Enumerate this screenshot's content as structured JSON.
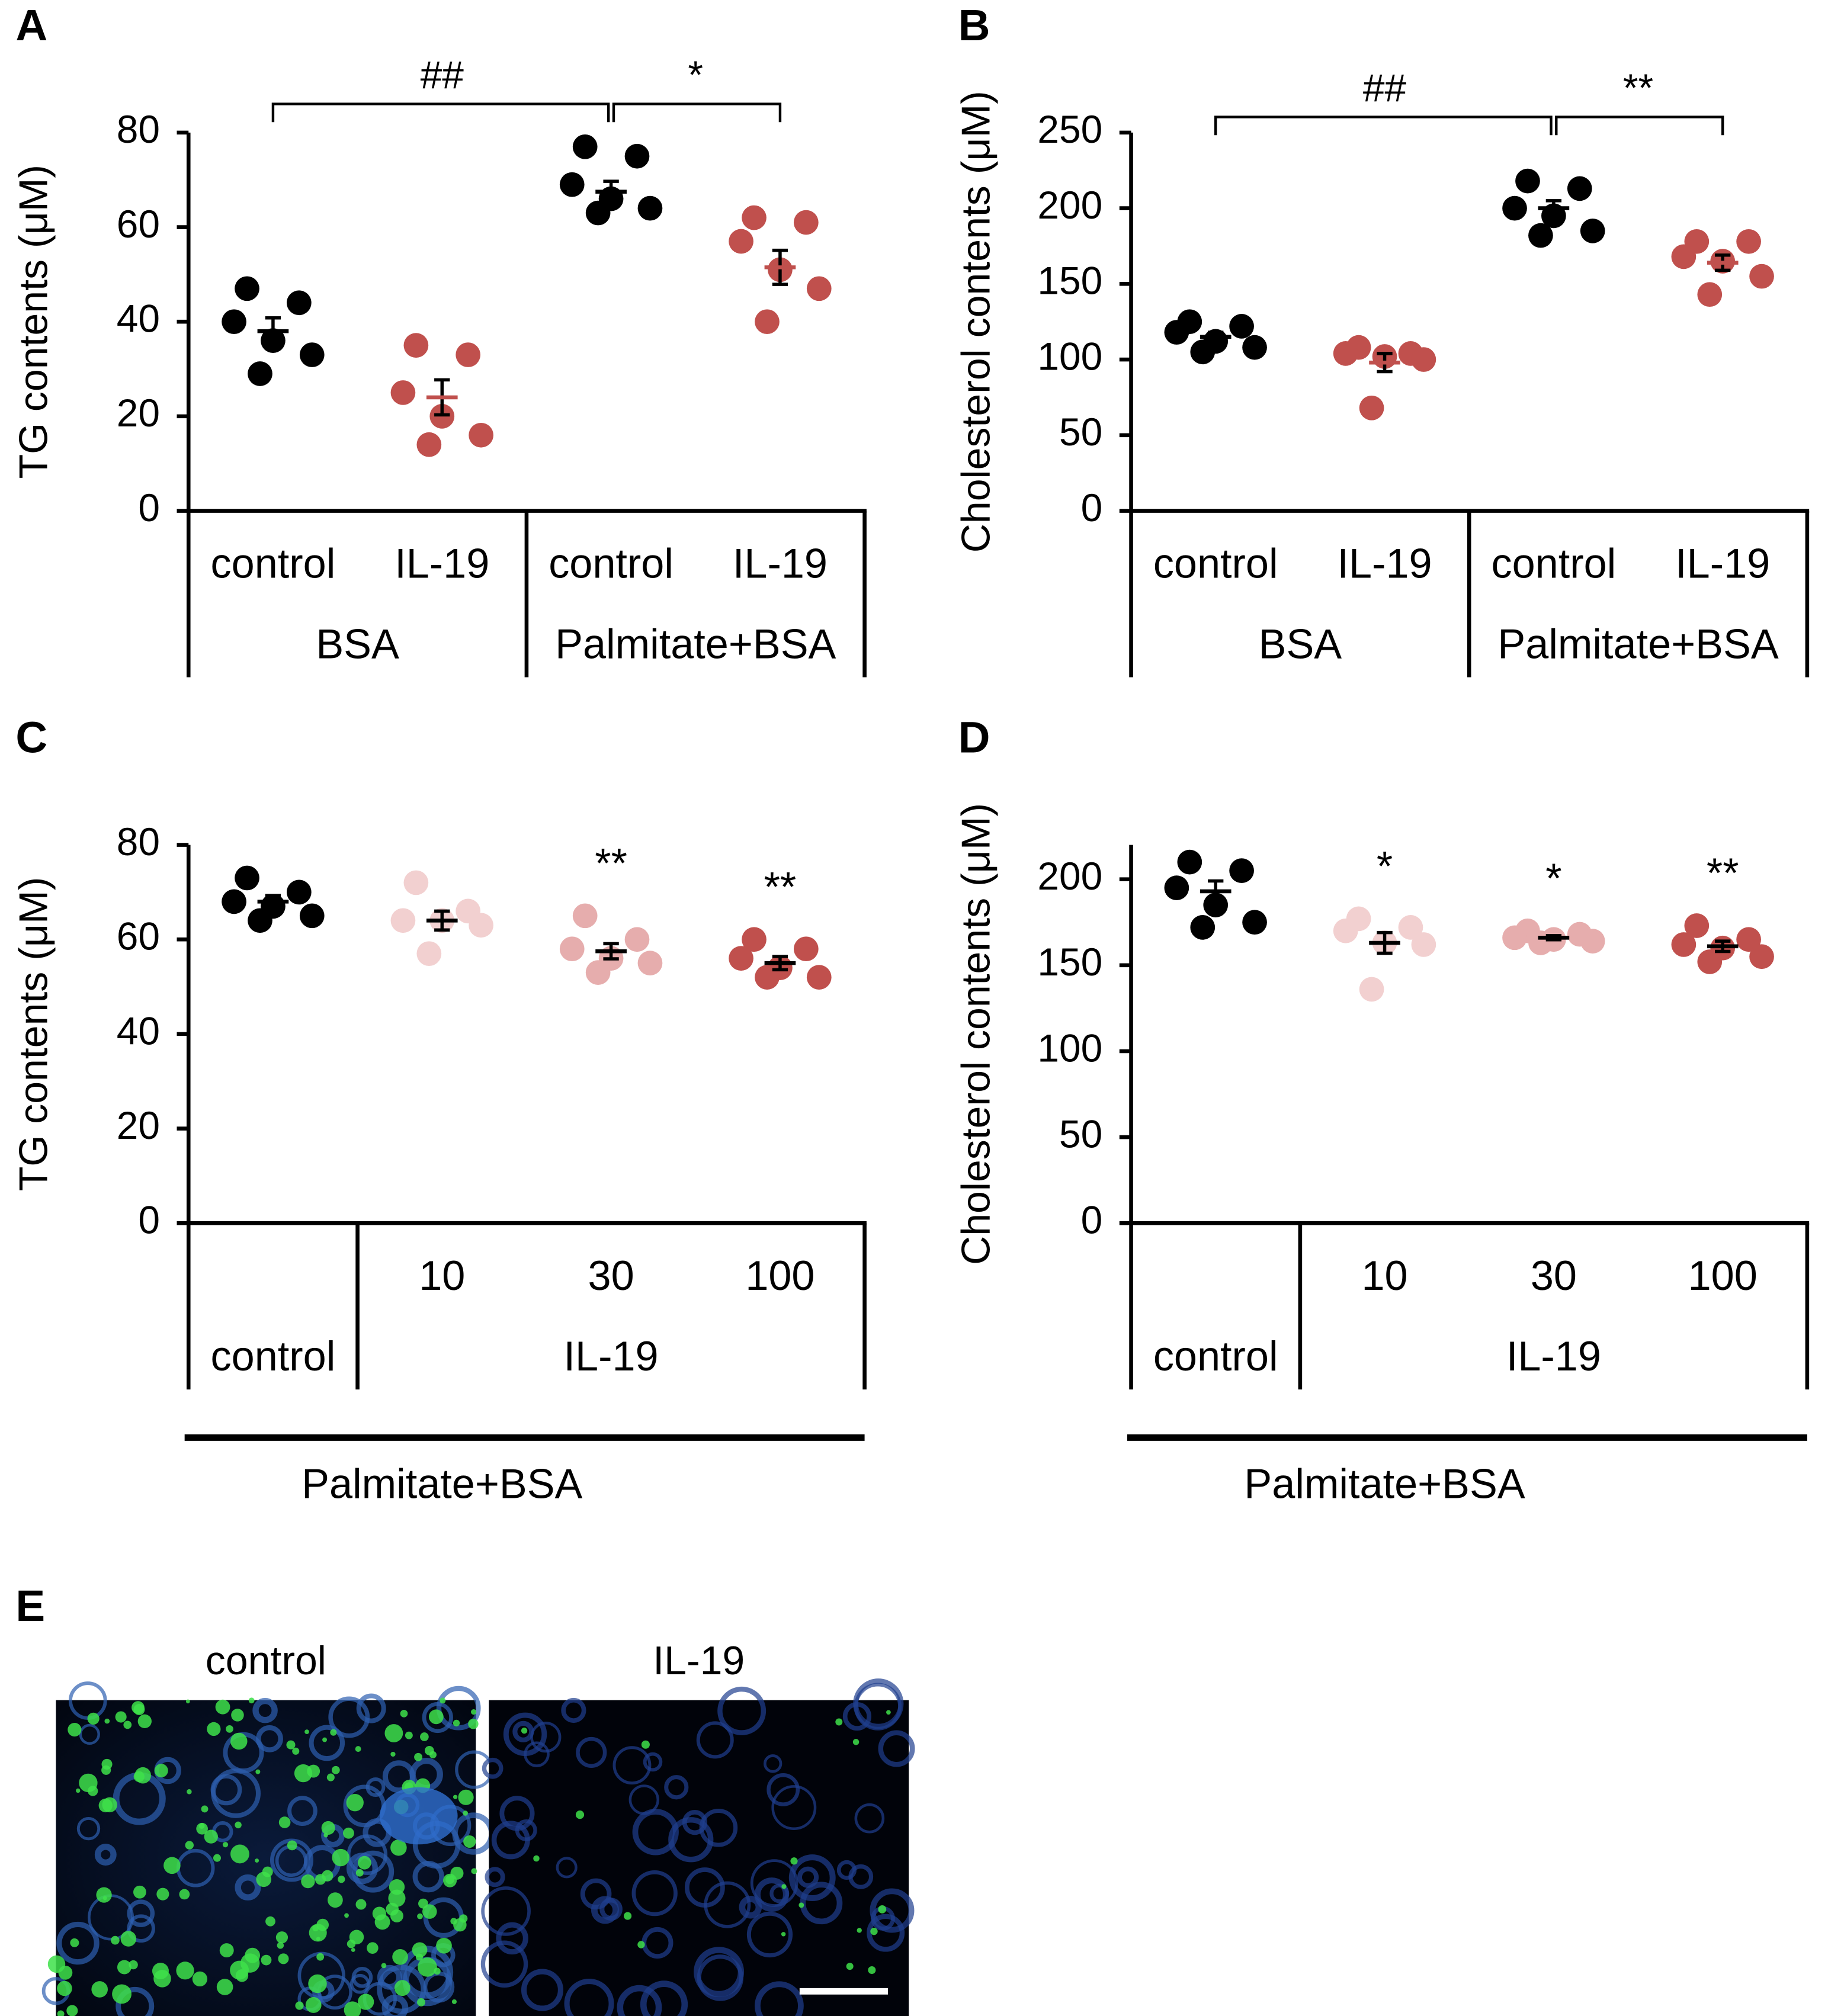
{
  "chart_data": [
    {
      "type": "dot",
      "panel": "A",
      "ylabel": "TG contents (μM)",
      "ylim": [
        0,
        80
      ],
      "yticks": [
        0,
        20,
        40,
        60,
        80
      ],
      "groups": [
        {
          "label": "BSA",
          "categories": [
            "control",
            "IL-19"
          ]
        },
        {
          "label": "Palmitate+BSA",
          "categories": [
            "control",
            "IL-19"
          ]
        }
      ],
      "data": [
        {
          "values": [
            47,
            44,
            40,
            36,
            33,
            29
          ],
          "mean": 38,
          "sem": 2.8,
          "color": "#000000",
          "mean_color": "#000000"
        },
        {
          "values": [
            35,
            33,
            25,
            20,
            16,
            14
          ],
          "mean": 24,
          "sem": 3.7,
          "color": "#c0504d",
          "mean_color": "#c0504d"
        },
        {
          "values": [
            77,
            75,
            69,
            66,
            64,
            63
          ],
          "mean": 67.5,
          "sem": 2.2,
          "color": "#000000",
          "mean_color": "#000000"
        },
        {
          "values": [
            62,
            61,
            57,
            51,
            47,
            40
          ],
          "mean": 51.5,
          "sem": 3.6,
          "color": "#c0504d",
          "mean_color": "#c0504d"
        }
      ],
      "brackets": [
        {
          "label": "##",
          "between": [
            0,
            2
          ]
        },
        {
          "label": "*",
          "between": [
            2,
            3
          ]
        }
      ]
    },
    {
      "type": "dot",
      "panel": "B",
      "ylabel": "Cholesterol contents (μM)",
      "ylim": [
        0,
        250
      ],
      "yticks": [
        0,
        50,
        100,
        150,
        200,
        250
      ],
      "groups": [
        {
          "label": "BSA",
          "categories": [
            "control",
            "IL-19"
          ]
        },
        {
          "label": "Palmitate+BSA",
          "categories": [
            "control",
            "IL-19"
          ]
        }
      ],
      "data": [
        {
          "values": [
            125,
            122,
            118,
            112,
            108,
            105
          ],
          "mean": 115,
          "sem": 3,
          "color": "#000000",
          "mean_color": "#000000"
        },
        {
          "values": [
            108,
            104,
            104,
            102,
            100,
            68
          ],
          "mean": 98,
          "sem": 6,
          "color": "#c0504d",
          "mean_color": "#c0504d"
        },
        {
          "values": [
            218,
            213,
            200,
            195,
            185,
            182
          ],
          "mean": 200,
          "sem": 5,
          "color": "#000000",
          "mean_color": "#000000"
        },
        {
          "values": [
            178,
            178,
            168,
            165,
            155,
            143
          ],
          "mean": 164,
          "sem": 5,
          "color": "#c0504d",
          "mean_color": "#c0504d"
        }
      ],
      "brackets": [
        {
          "label": "##",
          "between": [
            0,
            2
          ]
        },
        {
          "label": "**",
          "between": [
            2,
            3
          ]
        }
      ]
    },
    {
      "type": "dot",
      "panel": "C",
      "ylabel": "TG contents (μM)",
      "ylim": [
        0,
        80
      ],
      "yticks": [
        0,
        20,
        40,
        60,
        80
      ],
      "groups": [
        {
          "label": "control",
          "categories": [
            null
          ]
        },
        {
          "label": "IL-19",
          "categories": [
            "10",
            "30",
            "100"
          ]
        }
      ],
      "data": [
        {
          "values": [
            73,
            70,
            68,
            67,
            65,
            64
          ],
          "mean": 68,
          "sem": 1.3,
          "color": "#000000",
          "mean_color": "#000000"
        },
        {
          "values": [
            72,
            66,
            64,
            64,
            63,
            57
          ],
          "mean": 64,
          "sem": 2,
          "color": "#f2d0d0",
          "mean_color": "#000000"
        },
        {
          "values": [
            65,
            60,
            58,
            56,
            55,
            53
          ],
          "mean": 57.5,
          "sem": 1.6,
          "color": "#e6adad",
          "mean_color": "#000000"
        },
        {
          "values": [
            60,
            58,
            56,
            54,
            52,
            52
          ],
          "mean": 55,
          "sem": 1.4,
          "color": "#c0504d",
          "mean_color": "#000000"
        }
      ],
      "annotations": [
        null,
        null,
        "**",
        "**"
      ],
      "footer": "Palmitate+BSA"
    },
    {
      "type": "dot",
      "panel": "D",
      "ylabel": "Cholesterol contents (μM)",
      "ylim": [
        0,
        220
      ],
      "yticks": [
        0,
        50,
        100,
        150,
        200
      ],
      "groups": [
        {
          "label": "control",
          "categories": [
            null
          ]
        },
        {
          "label": "IL-19",
          "categories": [
            "10",
            "30",
            "100"
          ]
        }
      ],
      "data": [
        {
          "values": [
            210,
            205,
            195,
            185,
            175,
            172
          ],
          "mean": 193,
          "sem": 6,
          "color": "#000000",
          "mean_color": "#000000"
        },
        {
          "values": [
            177,
            172,
            170,
            163,
            162,
            136
          ],
          "mean": 163,
          "sem": 6,
          "color": "#f2d0d0",
          "mean_color": "#000000"
        },
        {
          "values": [
            170,
            168,
            166,
            165,
            164,
            163
          ],
          "mean": 166,
          "sem": 1.2,
          "color": "#e6adad",
          "mean_color": "#000000"
        },
        {
          "values": [
            173,
            165,
            162,
            160,
            155,
            152
          ],
          "mean": 161,
          "sem": 3,
          "color": "#c0504d",
          "mean_color": "#000000"
        }
      ],
      "annotations": [
        null,
        "*",
        "*",
        "**"
      ],
      "footer": "Palmitate+BSA"
    }
  ],
  "micrographs": {
    "panel": "E",
    "labels": [
      "control",
      "IL-19"
    ]
  }
}
